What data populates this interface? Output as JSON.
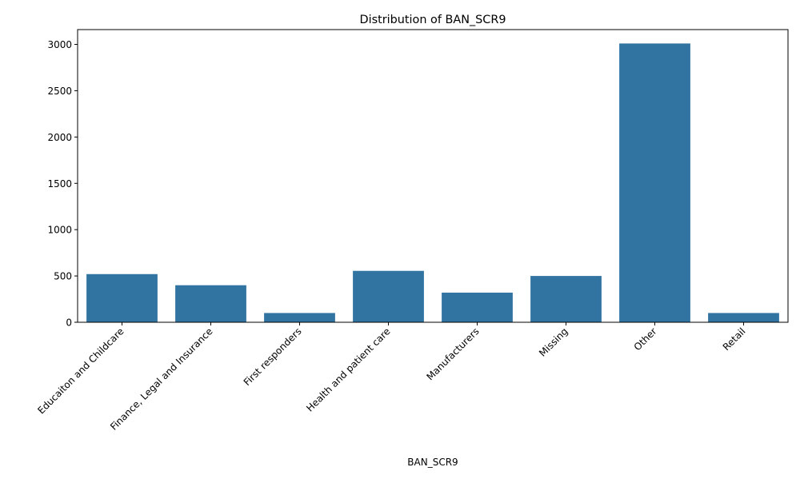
{
  "chart_data": {
    "type": "bar",
    "title": "Distribution of BAN_SCR9",
    "xlabel": "BAN_SCR9",
    "ylabel": "",
    "categories": [
      "Educaiton and Childcare",
      "Finance, Legal and Insurance",
      "First responders",
      "Health and patient care",
      "Manufacturers",
      "Missing",
      "Other",
      "Retail"
    ],
    "values": [
      520,
      400,
      100,
      555,
      320,
      500,
      3010,
      100
    ],
    "ylim": [
      0,
      3160
    ],
    "yticks": [
      0,
      500,
      1000,
      1500,
      2000,
      2500,
      3000
    ],
    "bar_color": "#3274a1",
    "grid": false,
    "legend": "none"
  }
}
